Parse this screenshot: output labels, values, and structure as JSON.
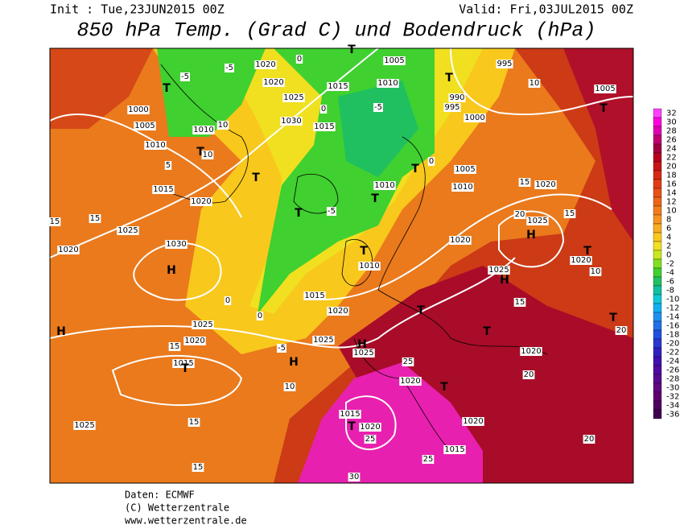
{
  "header": {
    "init": "Init : Tue,23JUN2015 00Z",
    "valid": "Valid: Fri,03JUL2015 00Z",
    "title": "850 hPa Temp. (Grad C) und Bodendruck (hPa)"
  },
  "colorbar": {
    "levels": [
      32,
      30,
      28,
      26,
      24,
      22,
      20,
      18,
      16,
      14,
      12,
      10,
      8,
      6,
      4,
      2,
      0,
      -2,
      -4,
      -6,
      -8,
      -10,
      -12,
      -14,
      -16,
      -18,
      -20,
      -22,
      -24,
      -26,
      -28,
      -30,
      -32,
      -34,
      -36
    ],
    "colors": [
      "#ff40ff",
      "#ff00e0",
      "#e000b0",
      "#c00070",
      "#a00040",
      "#b8001c",
      "#c81414",
      "#d82814",
      "#e03c14",
      "#e85018",
      "#ee6418",
      "#f27c1c",
      "#f69420",
      "#f8ac20",
      "#f8c81c",
      "#f0e020",
      "#c8e820",
      "#80e020",
      "#40d030",
      "#20c060",
      "#10c0a0",
      "#10c8d8",
      "#10b0f0",
      "#2090f0",
      "#2070e8",
      "#2050e0",
      "#2838d0",
      "#3020c0",
      "#4010b0",
      "#5008a0",
      "#580890",
      "#600880",
      "#600070",
      "#500060",
      "#400050"
    ]
  },
  "map_labels": [
    "1020",
    "1020",
    "1015",
    "1010",
    "1005",
    "995",
    "1005",
    "990",
    "995",
    "1000",
    "1025",
    "1030",
    "1015",
    "1010",
    "1000",
    "1005",
    "1010",
    "1015",
    "1020",
    "1025",
    "1030",
    "1020",
    "1005",
    "1010",
    "1010",
    "1020",
    "1025",
    "1020",
    "1020",
    "1025",
    "1010",
    "1015",
    "1020",
    "1025",
    "1020",
    "1025",
    "1025",
    "1015",
    "1020",
    "1020",
    "1025",
    "1015",
    "1020",
    "1020",
    "1015",
    "-5",
    "10",
    "0",
    "-5",
    "0",
    "-5",
    "15",
    "15",
    "15",
    "20",
    "15",
    "10",
    "15",
    "20",
    "20",
    "0",
    "0",
    "-5",
    "10",
    "15",
    "15",
    "15",
    "25",
    "25",
    "25",
    "30",
    "20",
    "10",
    "0",
    "-5",
    "5",
    "10"
  ],
  "pressure_centers": [
    "T",
    "T",
    "T",
    "T",
    "T",
    "T",
    "T",
    "T",
    "H",
    "T",
    "H",
    "T",
    "H",
    "H",
    "T",
    "T",
    "T",
    "H",
    "H",
    "T",
    "T",
    "T",
    "T"
  ],
  "footer": [
    "Daten: ECMWF",
    "(C) Wetterzentrale",
    "www.wetterzentrale.de"
  ]
}
